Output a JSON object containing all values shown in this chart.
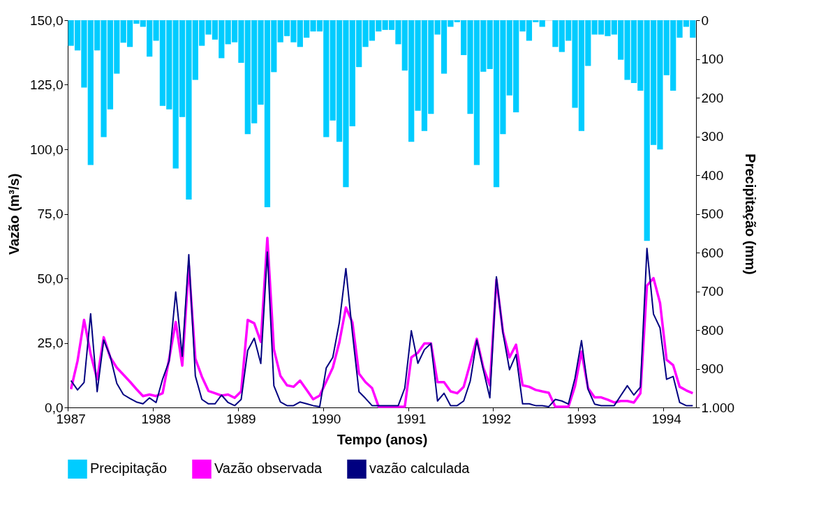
{
  "chart_data": {
    "type": "line",
    "xlabel": "Tempo (anos)",
    "ylabel": "Vazão (m³/s)",
    "y2label": "Precipitação (mm)",
    "categories": [
      "1987",
      null,
      null,
      null,
      null,
      null,
      null,
      null,
      null,
      null,
      null,
      null,
      null,
      "1988",
      null,
      null,
      null,
      null,
      null,
      null,
      null,
      null,
      null,
      null,
      null,
      null,
      "1989",
      null,
      null,
      null,
      null,
      null,
      null,
      null,
      null,
      null,
      null,
      null,
      null,
      "1990",
      null,
      null,
      null,
      null,
      null,
      null,
      null,
      null,
      null,
      null,
      null,
      null,
      "1991",
      null,
      null,
      null,
      null,
      null,
      null,
      null,
      null,
      null,
      null,
      null,
      null,
      "1992",
      null,
      null,
      null,
      null,
      null,
      null,
      null,
      null,
      null,
      null,
      null,
      null,
      "1993",
      null,
      null,
      null,
      null,
      null,
      null,
      null,
      null,
      null,
      null,
      null,
      null,
      "1994",
      null,
      null,
      null,
      null
    ],
    "series": [
      {
        "name": "Precipitação",
        "type": "bar",
        "axis": "y2",
        "color": "#00ccff",
        "values": [
          66,
          78,
          174,
          374,
          78,
          302,
          230,
          138,
          58,
          69,
          9,
          17,
          94,
          53,
          221,
          230,
          383,
          250,
          463,
          154,
          66,
          37,
          50,
          98,
          62,
          57,
          110,
          294,
          266,
          218,
          483,
          134,
          57,
          41,
          57,
          69,
          45,
          29,
          29,
          302,
          259,
          314,
          431,
          274,
          121,
          69,
          53,
          29,
          25,
          25,
          62,
          130,
          314,
          234,
          286,
          242,
          37,
          138,
          17,
          5,
          90,
          242,
          374,
          133,
          126,
          431,
          294,
          194,
          238,
          29,
          53,
          5,
          17,
          0,
          69,
          82,
          53,
          226,
          286,
          118,
          37,
          37,
          41,
          37,
          102,
          154,
          162,
          182,
          570,
          322,
          334,
          142,
          182,
          45,
          17,
          45
        ]
      },
      {
        "name": "Vazão observada",
        "color": "#ff00ff",
        "values": [
          7.1,
          18.0,
          33.9,
          20.7,
          10.9,
          27.2,
          19.4,
          15.4,
          12.7,
          10.0,
          7.1,
          4.4,
          5.0,
          4.4,
          5.5,
          18.9,
          33.1,
          16.2,
          55.0,
          18.9,
          11.9,
          6.4,
          5.5,
          4.6,
          5.0,
          3.7,
          6.2,
          33.9,
          32.6,
          25.4,
          65.7,
          22.5,
          12.2,
          8.6,
          8.0,
          10.4,
          6.8,
          3.2,
          4.6,
          10.0,
          15.4,
          25.2,
          38.7,
          32.9,
          13.1,
          9.8,
          7.5,
          0.3,
          0.3,
          0.3,
          0.3,
          0.3,
          19.4,
          21.2,
          24.8,
          24.8,
          9.8,
          9.8,
          6.2,
          5.5,
          8.0,
          17.1,
          26.6,
          15.4,
          8.6,
          49.5,
          29.3,
          19.4,
          24.3,
          8.6,
          8.0,
          6.8,
          6.2,
          5.7,
          0.3,
          0.3,
          0.3,
          8.2,
          21.6,
          7.5,
          3.9,
          3.9,
          3.0,
          1.9,
          2.5,
          2.5,
          1.9,
          5.5,
          47.2,
          50.1,
          40.5,
          18.5,
          16.4,
          8.0,
          6.6,
          5.5
        ]
      },
      {
        "name": "vazão calculada",
        "color": "#000080",
        "values": [
          10.4,
          6.8,
          9.7,
          36.3,
          6.1,
          26.1,
          19.8,
          9.3,
          5.0,
          3.5,
          2.1,
          1.4,
          3.7,
          1.9,
          11.0,
          18.0,
          44.7,
          19.8,
          59.2,
          12.2,
          3.1,
          1.4,
          1.4,
          4.8,
          1.9,
          0.7,
          3.1,
          22.1,
          26.8,
          17.0,
          60.2,
          8.4,
          2.1,
          0.7,
          0.7,
          2.1,
          1.4,
          0.7,
          0.3,
          15.3,
          19.4,
          32.9,
          53.8,
          28.8,
          6.1,
          3.5,
          0.7,
          0.7,
          0.7,
          0.7,
          0.7,
          7.5,
          29.7,
          17.1,
          22.4,
          24.8,
          2.5,
          5.5,
          0.7,
          0.7,
          2.5,
          10.2,
          26.1,
          14.6,
          3.7,
          50.6,
          28.8,
          14.6,
          20.5,
          1.4,
          1.4,
          0.7,
          0.7,
          0.3,
          3.1,
          2.5,
          1.3,
          11.3,
          25.9,
          7.0,
          1.3,
          0.7,
          0.7,
          0.7,
          4.6,
          8.4,
          4.8,
          7.9,
          61.6,
          36.2,
          30.8,
          10.9,
          12.0,
          1.9,
          0.7,
          0.7
        ]
      }
    ],
    "ylim": [
      0,
      150
    ],
    "yticks": [
      {
        "value": 0,
        "label": "0,0"
      },
      {
        "value": 25,
        "label": "25,0"
      },
      {
        "value": 50,
        "label": "50,0"
      },
      {
        "value": 75,
        "label": "75,0"
      },
      {
        "value": 100,
        "label": "100,0"
      },
      {
        "value": 125,
        "label": "125,0"
      },
      {
        "value": 150,
        "label": "150,0"
      }
    ],
    "y2lim": [
      1000,
      0
    ],
    "y2ticks": [
      0,
      100,
      200,
      300,
      400,
      500,
      600,
      700,
      800,
      900,
      {
        "value": 1000,
        "label": "1.000"
      }
    ],
    "legend": "bottom",
    "grid": false
  }
}
